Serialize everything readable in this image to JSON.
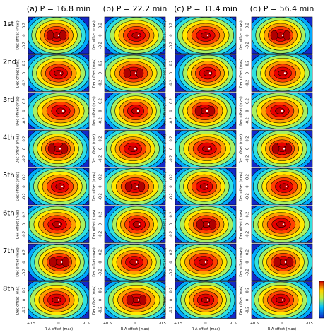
{
  "columns": [
    "(a) P = 16.8 min",
    "(b) P = 22.2 min",
    "(c) P = 31.4 min",
    "(d) P = 56.4 min"
  ],
  "rows": [
    "1st",
    "2nd",
    "3rd",
    "4th",
    "5th",
    "6th",
    "7th",
    "8th"
  ],
  "y_axis_label": "Dec offset (mas)",
  "y_ticks": [
    "0.2",
    "0",
    "-0.2"
  ],
  "x_axis_label": "R A offset (mas)",
  "x_ticks": [
    "+0.5",
    "0",
    "-0.5"
  ]
}
